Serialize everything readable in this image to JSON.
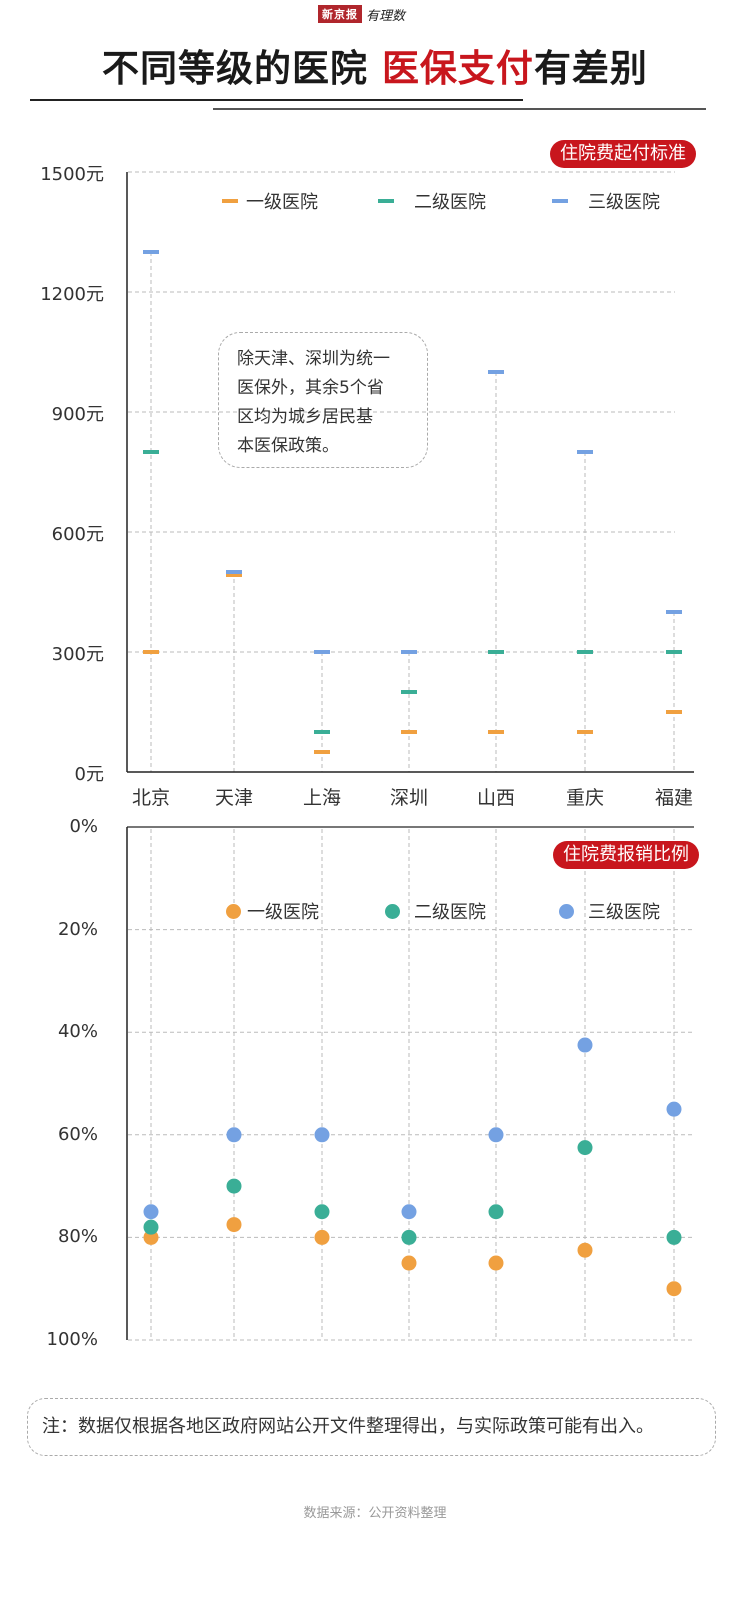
{
  "header": {
    "brand_name": "新京报",
    "brand_sub": "有理数",
    "title_part1": "不同等级的医院 ",
    "title_highlight": "医保支付",
    "title_part2": "有差别"
  },
  "colors": {
    "level1": "#f0a040",
    "level2": "#3aae96",
    "level3": "#74a1e2",
    "accent_red": "#c8161d",
    "grid": "#bbbbbb",
    "axis": "#222222"
  },
  "legend": {
    "level1": "一级医院",
    "level2": "二级医院",
    "level3": "三级医院"
  },
  "top_chart": {
    "badge": "住院费起付标准",
    "y_ticks": [
      "1500元",
      "1200元",
      "900元",
      "600元",
      "300元",
      "0元"
    ],
    "callout": [
      "除天津、深圳为统一",
      "医保外，其余5个省",
      "区均为城乡居民基",
      "本医保政策。"
    ]
  },
  "bottom_chart": {
    "badge": "住院费报销比例",
    "y_ticks": [
      "0%",
      "20%",
      "40%",
      "60%",
      "80%",
      "100%"
    ]
  },
  "categories": [
    "北京",
    "天津",
    "上海",
    "深圳",
    "山西",
    "重庆",
    "福建"
  ],
  "note": "注：数据仅根据各地区政府网站公开文件整理得出，与实际政策可能有出入。",
  "source": "数据来源：公开资料整理",
  "chart_data": [
    {
      "type": "scatter",
      "marker": "horizontal-dash",
      "title": "住院费起付标准",
      "categories": [
        "北京",
        "天津",
        "上海",
        "深圳",
        "山西",
        "重庆",
        "福建"
      ],
      "ylabel": "元",
      "ylim": [
        0,
        1500
      ],
      "yticks": [
        0,
        300,
        600,
        900,
        1200,
        1500
      ],
      "grid": true,
      "legend_position": "top",
      "series": [
        {
          "name": "一级医院",
          "values": [
            300,
            500,
            50,
            100,
            100,
            100,
            150
          ]
        },
        {
          "name": "二级医院",
          "values": [
            800,
            500,
            100,
            200,
            300,
            300,
            300
          ]
        },
        {
          "name": "三级医院",
          "values": [
            1300,
            500,
            300,
            300,
            1000,
            800,
            400
          ]
        }
      ],
      "annotations": [
        "除天津、深圳为统一医保外，其余5个省区均为城乡居民基本医保政策。"
      ]
    },
    {
      "type": "scatter",
      "marker": "circle",
      "title": "住院费报销比例",
      "categories": [
        "北京",
        "天津",
        "上海",
        "深圳",
        "山西",
        "重庆",
        "福建"
      ],
      "ylabel": "%",
      "ylim": [
        0,
        100
      ],
      "y_inverted": true,
      "yticks": [
        0,
        20,
        40,
        60,
        80,
        100
      ],
      "grid": true,
      "legend_position": "top",
      "series": [
        {
          "name": "一级医院",
          "values": [
            80,
            77.5,
            80,
            85,
            85,
            82.5,
            90
          ]
        },
        {
          "name": "二级医院",
          "values": [
            78,
            70,
            75,
            80,
            75,
            62.5,
            80
          ]
        },
        {
          "name": "三级医院",
          "values": [
            75,
            60,
            60,
            75,
            60,
            42.5,
            55
          ]
        }
      ]
    }
  ]
}
